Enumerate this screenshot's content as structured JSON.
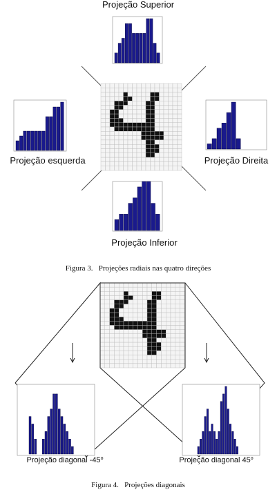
{
  "figure3": {
    "labels": {
      "top": "Projeção Superior",
      "left": "Projeção esquerda",
      "right": "Projeção Direita",
      "bottom": "Projeção Inferior"
    },
    "caption": "Figura 3.   Projeções radiais nas quatro direções"
  },
  "figure4": {
    "labels": {
      "left": "Projeção diagonal -45",
      "left_sup": "o",
      "right": "Projeção diagonal 45",
      "right_sup": "o"
    },
    "caption": "Figura 4.   Projeções diagonais"
  },
  "digit_grid": {
    "rows": 20,
    "cols": 18,
    "filled": [
      [
        2,
        5
      ],
      [
        2,
        11
      ],
      [
        2,
        12
      ],
      [
        3,
        5
      ],
      [
        3,
        6
      ],
      [
        3,
        11
      ],
      [
        3,
        12
      ],
      [
        4,
        3
      ],
      [
        4,
        4
      ],
      [
        4,
        5
      ],
      [
        4,
        10
      ],
      [
        4,
        11
      ],
      [
        5,
        3
      ],
      [
        5,
        4
      ],
      [
        5,
        10
      ],
      [
        5,
        11
      ],
      [
        6,
        2
      ],
      [
        6,
        3
      ],
      [
        6,
        10
      ],
      [
        6,
        11
      ],
      [
        7,
        2
      ],
      [
        7,
        3
      ],
      [
        7,
        10
      ],
      [
        7,
        11
      ],
      [
        8,
        2
      ],
      [
        8,
        3
      ],
      [
        8,
        4
      ],
      [
        8,
        10
      ],
      [
        8,
        11
      ],
      [
        9,
        2
      ],
      [
        9,
        3
      ],
      [
        9,
        4
      ],
      [
        9,
        5
      ],
      [
        9,
        6
      ],
      [
        9,
        7
      ],
      [
        9,
        8
      ],
      [
        9,
        9
      ],
      [
        9,
        10
      ],
      [
        9,
        11
      ],
      [
        10,
        3
      ],
      [
        10,
        4
      ],
      [
        10,
        5
      ],
      [
        10,
        6
      ],
      [
        10,
        7
      ],
      [
        10,
        8
      ],
      [
        10,
        9
      ],
      [
        10,
        10
      ],
      [
        10,
        11
      ],
      [
        11,
        9
      ],
      [
        11,
        10
      ],
      [
        11,
        11
      ],
      [
        11,
        12
      ],
      [
        11,
        13
      ],
      [
        12,
        9
      ],
      [
        12,
        10
      ],
      [
        12,
        11
      ],
      [
        12,
        12
      ],
      [
        12,
        13
      ],
      [
        13,
        10
      ],
      [
        13,
        11
      ],
      [
        14,
        10
      ],
      [
        14,
        11
      ],
      [
        14,
        12
      ],
      [
        15,
        10
      ],
      [
        15,
        11
      ],
      [
        15,
        12
      ],
      [
        16,
        10
      ],
      [
        16,
        11
      ]
    ]
  },
  "chart_data": [
    {
      "id": "top",
      "type": "bar",
      "values": [
        2,
        4,
        5,
        8,
        8,
        6,
        6,
        6,
        6,
        9,
        9,
        4,
        2
      ]
    },
    {
      "id": "left",
      "type": "bar",
      "values": [
        2,
        3,
        4,
        4,
        4,
        4,
        4,
        4,
        7,
        7,
        9,
        9,
        10
      ]
    },
    {
      "id": "right",
      "type": "bar",
      "values": [
        1,
        2,
        4,
        5,
        7,
        9,
        2
      ]
    },
    {
      "id": "bottom",
      "type": "bar",
      "values": [
        2,
        3,
        3,
        5,
        6,
        8,
        9,
        9,
        5,
        3
      ]
    },
    {
      "id": "diag_left",
      "type": "bar",
      "values": [
        5,
        4,
        2,
        0,
        0,
        2,
        3,
        5,
        6,
        8,
        8,
        6,
        5,
        4,
        3,
        2,
        1
      ],
      "ylim": [
        0,
        9
      ]
    },
    {
      "id": "diag_right",
      "type": "bar",
      "values": [
        1,
        2,
        3,
        5,
        6,
        3,
        4,
        3,
        2,
        3,
        7,
        8,
        9,
        6,
        4,
        3,
        2,
        1
      ],
      "ylim": [
        0,
        9
      ]
    }
  ]
}
